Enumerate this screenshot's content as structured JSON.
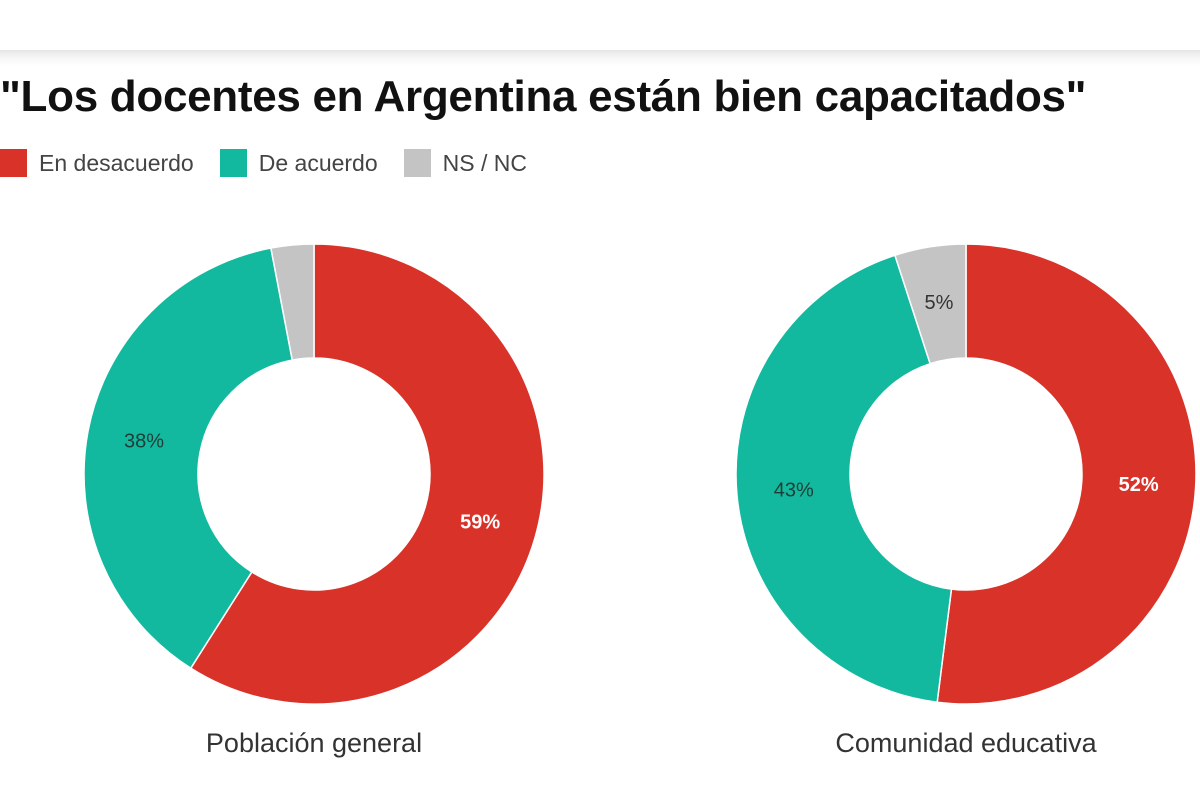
{
  "chart_data": {
    "type": "pie",
    "variant": "donut",
    "title": "\"Los docentes en Argentina están bien capacitados\"",
    "legend": [
      {
        "label": "En desacuerdo",
        "color": "#d93229"
      },
      {
        "label": "De acuerdo",
        "color": "#13b99e"
      },
      {
        "label": "NS / NC",
        "color": "#c4c4c4"
      }
    ],
    "legend_position": "top-left",
    "charts": [
      {
        "caption": "Población general",
        "slices": [
          {
            "name": "En desacuerdo",
            "value": 59,
            "label": "59%",
            "color": "#d93229",
            "label_color": "#ffffff",
            "label_bold": true
          },
          {
            "name": "De acuerdo",
            "value": 38,
            "label": "38%",
            "color": "#13b99e",
            "label_color": "#1f3d38",
            "label_bold": false
          },
          {
            "name": "NS / NC",
            "value": 3,
            "label": "",
            "color": "#c4c4c4",
            "label_color": "#333333",
            "label_bold": false
          }
        ]
      },
      {
        "caption": "Comunidad educativa",
        "slices": [
          {
            "name": "En desacuerdo",
            "value": 52,
            "label": "52%",
            "color": "#d93229",
            "label_color": "#ffffff",
            "label_bold": true
          },
          {
            "name": "De acuerdo",
            "value": 43,
            "label": "43%",
            "color": "#13b99e",
            "label_color": "#1f3d38",
            "label_bold": false
          },
          {
            "name": "NS / NC",
            "value": 5,
            "label": "5%",
            "color": "#c4c4c4",
            "label_color": "#333333",
            "label_bold": false
          }
        ]
      }
    ]
  }
}
